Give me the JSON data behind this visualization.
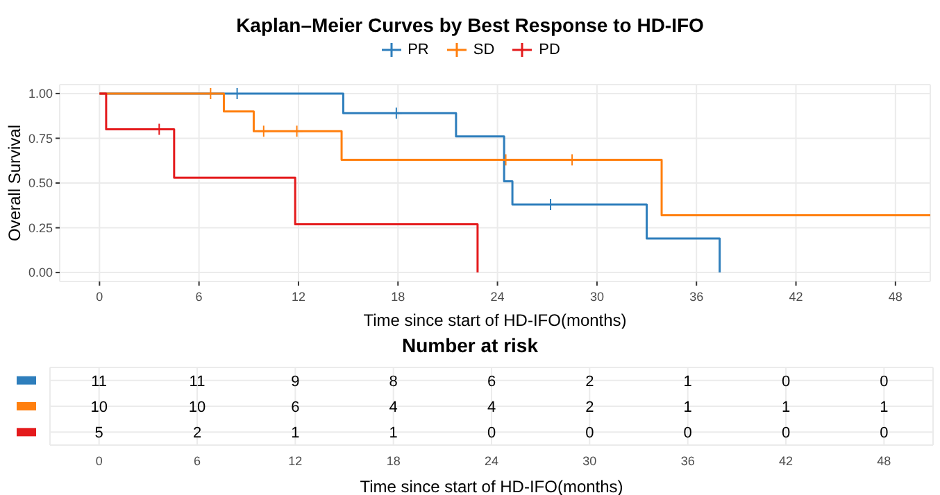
{
  "chart_data": [
    {
      "type": "step",
      "title": "Kaplan–Meier Curves by Best Response to HD-IFO",
      "xlabel": "Time since start of HD-IFO(months)",
      "ylabel": "Overall Survival",
      "xlim": [
        -2.4,
        50.1
      ],
      "xticks": [
        0,
        6,
        12,
        18,
        24,
        30,
        36,
        42,
        48
      ],
      "ylim": [
        -0.05,
        1.05
      ],
      "yticks": [
        {
          "value": 0,
          "label": "0.00"
        },
        {
          "value": 0.25,
          "label": "0.25"
        },
        {
          "value": 0.5,
          "label": "0.50"
        },
        {
          "value": 0.75,
          "label": "0.75"
        },
        {
          "value": 1,
          "label": "1.00"
        }
      ],
      "grid": true,
      "legend": "top",
      "series": [
        {
          "name": "PR",
          "type": "step",
          "color": "#2e7ebc",
          "x": [
            0,
            14.7,
            21.5,
            24.4,
            24.9,
            33,
            37.4
          ],
          "values": [
            1,
            0.89,
            0.76,
            0.51,
            0.38,
            0.19,
            0
          ]
        },
        {
          "name": "SD",
          "type": "step",
          "color": "#ff7f0e",
          "x": [
            0,
            7.5,
            9.3,
            14.6,
            33.9,
            50.1
          ],
          "values": [
            1,
            0.9,
            0.79,
            0.63,
            0.32,
            0.32
          ]
        },
        {
          "name": "PD",
          "type": "step",
          "color": "#e41a1c",
          "x": [
            0,
            0.4,
            4.5,
            11.8,
            22.8
          ],
          "values": [
            1,
            0.8,
            0.53,
            0.27,
            0
          ]
        },
        {
          "type": "scatter",
          "marker": "cross",
          "color": "#2e7ebc",
          "x": [
            8.3,
            17.9,
            27.2
          ],
          "values": [
            1,
            0.89,
            0.38
          ]
        },
        {
          "type": "scatter",
          "marker": "cross",
          "color": "#ff7f0e",
          "x": [
            6.7,
            9.9,
            11.9,
            24.5,
            28.5
          ],
          "values": [
            1,
            0.79,
            0.79,
            0.63,
            0.63
          ]
        },
        {
          "type": "scatter",
          "marker": "cross",
          "color": "#e41a1c",
          "x": [
            3.6
          ],
          "values": [
            0.8
          ]
        }
      ]
    },
    {
      "type": "heatmap",
      "title": "Number at risk",
      "xlabel": "Time since start of HD-IFO(months)",
      "categories": [
        "0",
        "6",
        "12",
        "18",
        "24",
        "30",
        "36",
        "42",
        "48"
      ],
      "y_categories": [
        null,
        null,
        null
      ],
      "colors": [
        "#2e7ebc",
        "#ff7f0e",
        "#e41a1c"
      ],
      "grid": true,
      "data_labels": true,
      "cells": [
        [
          11,
          11,
          9,
          8,
          6,
          2,
          1,
          0,
          0
        ],
        [
          10,
          10,
          6,
          4,
          4,
          2,
          1,
          1,
          1
        ],
        [
          5,
          2,
          1,
          1,
          0,
          0,
          0,
          0,
          0
        ]
      ]
    }
  ]
}
